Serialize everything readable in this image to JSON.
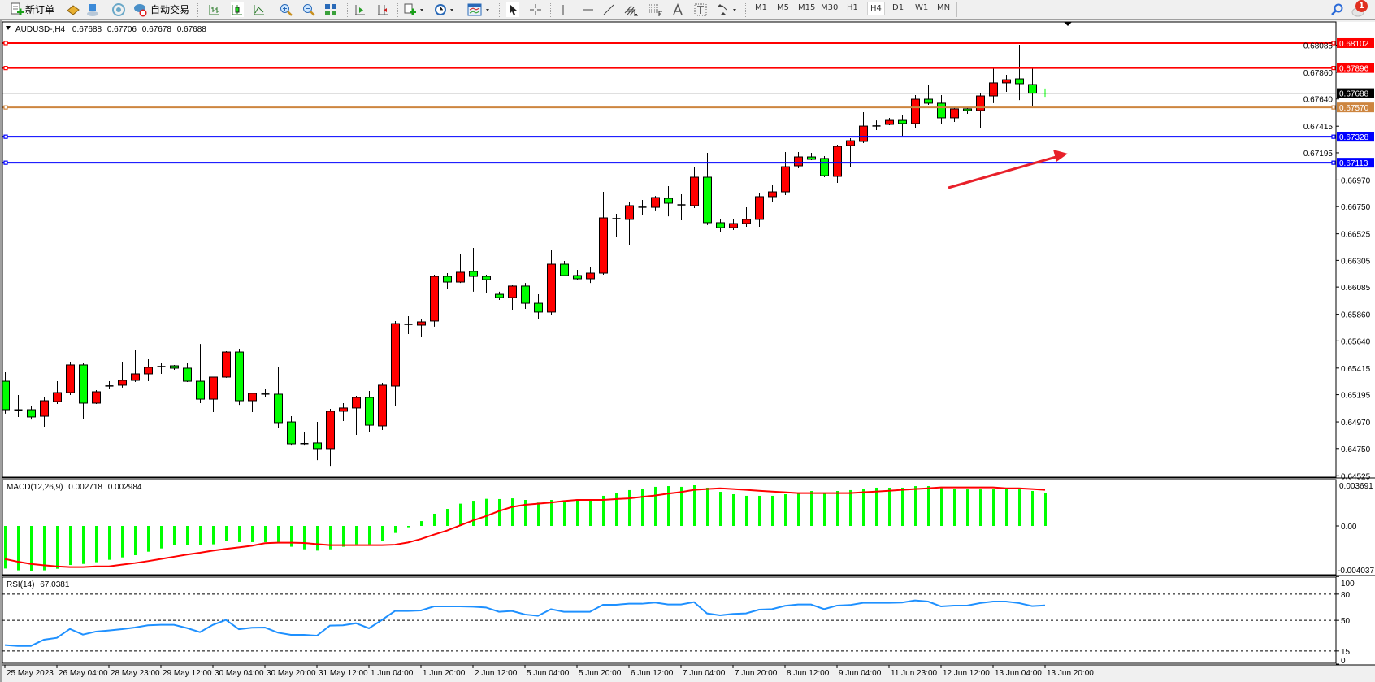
{
  "toolbar": {
    "new_order_label": "新订单",
    "auto_trading_label": "自动交易",
    "timeframes": [
      "M1",
      "M5",
      "M15",
      "M30",
      "H1",
      "H4",
      "D1",
      "W1",
      "MN"
    ],
    "active_timeframe": "H4",
    "notification_count": "1",
    "icons": [
      "new-order-icon",
      "history-book-icon",
      "market-watch-icon",
      "signals-icon",
      "auto-trading-icon",
      "bar-chart-icon",
      "candlestick-icon",
      "line-chart-icon",
      "zoom-in-icon",
      "zoom-out-icon",
      "tile-windows-icon",
      "auto-scroll-icon",
      "chart-shift-icon",
      "new-chart-icon",
      "periods-clock-icon",
      "templates-icon",
      "cursor-icon",
      "crosshair-icon",
      "vertical-line-icon",
      "horizontal-line-icon",
      "trendline-icon",
      "fibonacci-channel-icon",
      "fibonacci-retracement-icon",
      "text-icon",
      "text-label-icon",
      "arrows-icon",
      "search-icon",
      "notifications-icon"
    ]
  },
  "chart": {
    "symbol": "AUDUSD-,H4",
    "open": "0.67688",
    "high": "0.67706",
    "low": "0.67678",
    "close": "0.67688",
    "bull_color": "#ff0000",
    "bear_color": "#00ff00",
    "price_ticks": [
      "0.68085",
      "0.67860",
      "0.67640",
      "0.67415",
      "0.67195",
      "0.66970",
      "0.66750",
      "0.66525",
      "0.66305",
      "0.66085",
      "0.65860",
      "0.65640",
      "0.65415",
      "0.65195",
      "0.64970",
      "0.64750",
      "0.64525"
    ],
    "hlines": [
      {
        "price": "0.68102",
        "color": "#ff0000"
      },
      {
        "price": "0.67896",
        "color": "#ff0000"
      },
      {
        "price": "0.67570",
        "color": "#cd853f"
      },
      {
        "price": "0.67328",
        "color": "#0000ff"
      },
      {
        "price": "0.67113",
        "color": "#0000ff"
      }
    ],
    "bid_line": {
      "price": "0.67688",
      "color": "#000000"
    },
    "arrow_color": "#e8202a",
    "time_labels": [
      "25 May 2023",
      "26 May 04:00",
      "28 May 23:00",
      "29 May 12:00",
      "30 May 04:00",
      "30 May 20:00",
      "31 May 12:00",
      "1 Jun 04:00",
      "1 Jun 20:00",
      "2 Jun 12:00",
      "5 Jun 04:00",
      "5 Jun 20:00",
      "6 Jun 12:00",
      "7 Jun 04:00",
      "7 Jun 20:00",
      "8 Jun 12:00",
      "9 Jun 04:00",
      "11 Jun 23:00",
      "12 Jun 12:00",
      "13 Jun 04:00",
      "13 Jun 20:00"
    ]
  },
  "macd_panel": {
    "title": "MACD(12,26,9)",
    "main_value": "0.002718",
    "signal_value": "0.002984",
    "scale_labels": [
      "0.003691",
      "0.00",
      "-0.004037"
    ],
    "hist_color": "#00ff00",
    "signal_color": "#ff0000"
  },
  "rsi_panel": {
    "title": "RSI(14)",
    "value": "67.0381",
    "levels": [
      "100",
      "80",
      "50",
      "15",
      "0"
    ],
    "line_color": "#1e90ff"
  },
  "chart_data": {
    "type": "candlestick",
    "symbol": "AUDUSD-",
    "timeframe": "H4",
    "ylim": [
      0.64525,
      0.68102
    ],
    "ohlc": [
      [
        0.65306,
        0.6538,
        0.65038,
        0.65071
      ],
      [
        0.65071,
        0.65192,
        0.65011,
        0.65068
      ],
      [
        0.65071,
        0.65098,
        0.6499,
        0.65011
      ],
      [
        0.65017,
        0.65179,
        0.6493,
        0.65145
      ],
      [
        0.65138,
        0.65306,
        0.65118,
        0.65212
      ],
      [
        0.65212,
        0.65468,
        0.65192,
        0.65441
      ],
      [
        0.65441,
        0.65454,
        0.64997,
        0.65125
      ],
      [
        0.65125,
        0.65232,
        0.65118,
        0.65219
      ],
      [
        0.65266,
        0.65306,
        0.65239,
        0.65268
      ],
      [
        0.65273,
        0.65468,
        0.65253,
        0.65313
      ],
      [
        0.65313,
        0.65568,
        0.653,
        0.65367
      ],
      [
        0.65367,
        0.65488,
        0.65306,
        0.65421
      ],
      [
        0.65421,
        0.65454,
        0.65367,
        0.65434
      ],
      [
        0.65434,
        0.65441,
        0.654,
        0.65414
      ],
      [
        0.65414,
        0.65461,
        0.653,
        0.65306
      ],
      [
        0.65306,
        0.65615,
        0.65125,
        0.65158
      ],
      [
        0.65158,
        0.6534,
        0.65051,
        0.6534
      ],
      [
        0.6534,
        0.65555,
        0.65334,
        0.65548
      ],
      [
        0.65548,
        0.65575,
        0.65111,
        0.65145
      ],
      [
        0.65145,
        0.65212,
        0.65051,
        0.65206
      ],
      [
        0.65199,
        0.65246,
        0.65172,
        0.65201
      ],
      [
        0.65199,
        0.65421,
        0.64917,
        0.64964
      ],
      [
        0.6497,
        0.65017,
        0.64775,
        0.64789
      ],
      [
        0.64789,
        0.6489,
        0.64775,
        0.64792
      ],
      [
        0.64796,
        0.6497,
        0.64654,
        0.64749
      ],
      [
        0.64749,
        0.65078,
        0.64607,
        0.65058
      ],
      [
        0.65058,
        0.65125,
        0.64977,
        0.65085
      ],
      [
        0.65085,
        0.65185,
        0.64863,
        0.65172
      ],
      [
        0.65172,
        0.65226,
        0.64883,
        0.64943
      ],
      [
        0.64937,
        0.65293,
        0.64903,
        0.65273
      ],
      [
        0.65266,
        0.65804,
        0.65105,
        0.65783
      ],
      [
        0.65783,
        0.65844,
        0.65696,
        0.6577
      ],
      [
        0.6577,
        0.65817,
        0.65676,
        0.65797
      ],
      [
        0.65804,
        0.66187,
        0.65757,
        0.66173
      ],
      [
        0.66173,
        0.662,
        0.66066,
        0.66126
      ],
      [
        0.66126,
        0.66361,
        0.66119,
        0.66207
      ],
      [
        0.66214,
        0.66408,
        0.66046,
        0.66173
      ],
      [
        0.66173,
        0.66187,
        0.66039,
        0.66146
      ],
      [
        0.66025,
        0.66046,
        0.65978,
        0.65998
      ],
      [
        0.65998,
        0.66106,
        0.65898,
        0.66093
      ],
      [
        0.66093,
        0.66119,
        0.65904,
        0.65951
      ],
      [
        0.65951,
        0.66025,
        0.65817,
        0.65878
      ],
      [
        0.65878,
        0.66395,
        0.65857,
        0.66274
      ],
      [
        0.66274,
        0.66301,
        0.66173,
        0.6618
      ],
      [
        0.6618,
        0.66227,
        0.66146,
        0.66153
      ],
      [
        0.66153,
        0.66254,
        0.66119,
        0.662
      ],
      [
        0.662,
        0.66872,
        0.66187,
        0.66657
      ],
      [
        0.66657,
        0.66691,
        0.66502,
        0.66644
      ],
      [
        0.66644,
        0.66791,
        0.66435,
        0.66758
      ],
      [
        0.66744,
        0.66805,
        0.66684,
        0.66746
      ],
      [
        0.66744,
        0.66838,
        0.66718,
        0.66825
      ],
      [
        0.66818,
        0.66919,
        0.6667,
        0.66778
      ],
      [
        0.66771,
        0.66852,
        0.66637,
        0.66758
      ],
      [
        0.66758,
        0.6708,
        0.66738,
        0.66993
      ],
      [
        0.66993,
        0.67195,
        0.66597,
        0.66617
      ],
      [
        0.66617,
        0.6665,
        0.66543,
        0.66576
      ],
      [
        0.66576,
        0.66644,
        0.66556,
        0.6661
      ],
      [
        0.6661,
        0.66744,
        0.66583,
        0.66644
      ],
      [
        0.66644,
        0.66865,
        0.66583,
        0.66832
      ],
      [
        0.66832,
        0.66926,
        0.66791,
        0.66872
      ],
      [
        0.66872,
        0.67201,
        0.66845,
        0.6708
      ],
      [
        0.67087,
        0.67201,
        0.67067,
        0.67161
      ],
      [
        0.67161,
        0.67195,
        0.67134,
        0.67141
      ],
      [
        0.67148,
        0.67168,
        0.66993,
        0.67006
      ],
      [
        0.67,
        0.67262,
        0.66946,
        0.67248
      ],
      [
        0.67255,
        0.67316,
        0.67074,
        0.67295
      ],
      [
        0.67289,
        0.67531,
        0.67275,
        0.67416
      ],
      [
        0.67416,
        0.67463,
        0.67383,
        0.67418
      ],
      [
        0.6743,
        0.67484,
        0.67423,
        0.67463
      ],
      [
        0.67463,
        0.67504,
        0.67336,
        0.67437
      ],
      [
        0.67437,
        0.67672,
        0.67403,
        0.67638
      ],
      [
        0.67638,
        0.67752,
        0.67591,
        0.67605
      ],
      [
        0.67605,
        0.67672,
        0.6743,
        0.67484
      ],
      [
        0.67484,
        0.67564,
        0.6745,
        0.67558
      ],
      [
        0.67558,
        0.67564,
        0.67517,
        0.67544
      ],
      [
        0.67544,
        0.67685,
        0.67403,
        0.67665
      ],
      [
        0.67665,
        0.67894,
        0.67605,
        0.67773
      ],
      [
        0.67773,
        0.6784,
        0.67699,
        0.67799
      ],
      [
        0.67806,
        0.68088,
        0.67631,
        0.67766
      ],
      [
        0.67759,
        0.67894,
        0.67584,
        0.67688
      ],
      [
        0.67688,
        0.67706,
        0.67678,
        0.67688
      ]
    ],
    "macd_hist": [
      -0.00352,
      -0.00367,
      -0.00376,
      -0.00367,
      -0.00354,
      -0.00323,
      -0.00314,
      -0.003,
      -0.0028,
      -0.0026,
      -0.00242,
      -0.00213,
      -0.00186,
      -0.00161,
      -0.00161,
      -0.00161,
      -0.00152,
      -0.00121,
      -0.00134,
      -0.00134,
      -0.00134,
      -0.00134,
      -0.00172,
      -0.00193,
      -0.00204,
      -0.00193,
      -0.00172,
      -0.00152,
      -0.00152,
      -0.00125,
      -0.00058,
      -0.00011,
      0.0004,
      0.00101,
      0.00141,
      0.00184,
      0.00208,
      0.00224,
      0.00222,
      0.00228,
      0.00215,
      0.00193,
      0.00215,
      0.00208,
      0.00215,
      0.00215,
      0.00249,
      0.00269,
      0.00296,
      0.00309,
      0.00323,
      0.00329,
      0.00323,
      0.00336,
      0.00316,
      0.00282,
      0.00262,
      0.00249,
      0.00249,
      0.00249,
      0.00262,
      0.00276,
      0.00289,
      0.00269,
      0.00289,
      0.00296,
      0.00309,
      0.00316,
      0.00316,
      0.00316,
      0.00329,
      0.00329,
      0.00323,
      0.00309,
      0.00302,
      0.00302,
      0.00302,
      0.00309,
      0.00302,
      0.00289,
      0.002718
    ],
    "macd_signal": [
      -0.00273,
      -0.00296,
      -0.00314,
      -0.00325,
      -0.00334,
      -0.0034,
      -0.0034,
      -0.00334,
      -0.00334,
      -0.0032,
      -0.00307,
      -0.00291,
      -0.00273,
      -0.00255,
      -0.00237,
      -0.00222,
      -0.00204,
      -0.0019,
      -0.00177,
      -0.00164,
      -0.00143,
      -0.00139,
      -0.00139,
      -0.00141,
      -0.0015,
      -0.00159,
      -0.00159,
      -0.00159,
      -0.00159,
      -0.00159,
      -0.00155,
      -0.00137,
      -0.00108,
      -0.00072,
      -0.00038,
      4e-05,
      0.00045,
      0.00081,
      0.00123,
      0.00157,
      0.00175,
      0.00184,
      0.00193,
      0.00206,
      0.00215,
      0.00215,
      0.00215,
      0.00222,
      0.00228,
      0.0024,
      0.00251,
      0.00267,
      0.0028,
      0.00298,
      0.00305,
      0.00311,
      0.00305,
      0.00298,
      0.00291,
      0.00284,
      0.00278,
      0.00271,
      0.00271,
      0.00271,
      0.00271,
      0.00271,
      0.00278,
      0.00284,
      0.00291,
      0.00298,
      0.00305,
      0.00311,
      0.00318,
      0.00318,
      0.00318,
      0.00318,
      0.00318,
      0.00311,
      0.00311,
      0.00305,
      0.002984
    ],
    "macd_ylim": [
      -0.004037,
      0.003691
    ],
    "rsi": [
      21.7,
      20.7,
      20.7,
      27.9,
      30.0,
      40.2,
      33.7,
      37.2,
      38.4,
      39.9,
      41.8,
      44.3,
      44.9,
      44.9,
      41.2,
      36.5,
      44.9,
      50.5,
      39.9,
      41.5,
      41.8,
      35.9,
      33.4,
      33.4,
      32.5,
      44.0,
      44.3,
      46.7,
      40.9,
      50.5,
      60.7,
      60.7,
      61.3,
      65.9,
      65.9,
      65.9,
      65.6,
      64.7,
      59.8,
      60.7,
      56.7,
      55.1,
      62.8,
      59.8,
      59.8,
      59.8,
      67.8,
      67.8,
      69.0,
      69.0,
      70.3,
      68.1,
      68.1,
      70.9,
      57.9,
      55.7,
      57.3,
      57.9,
      62.2,
      62.8,
      66.6,
      68.1,
      68.1,
      62.8,
      66.9,
      67.5,
      70.0,
      70.0,
      70.0,
      70.3,
      72.8,
      71.5,
      65.9,
      66.9,
      66.9,
      69.7,
      71.5,
      71.5,
      69.7,
      66.3,
      67.0381
    ],
    "rsi_levels": [
      80,
      50,
      15
    ],
    "rsi_ylim": [
      0,
      100
    ]
  }
}
